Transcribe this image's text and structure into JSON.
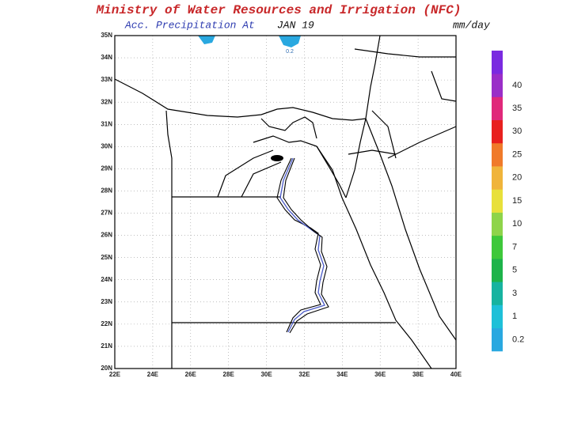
{
  "title": "Ministry of Water Resources and Irrigation (NFC)",
  "subtitle": {
    "label": "Acc. Precipitation  At",
    "date": "JAN 19"
  },
  "unit": "mm/day",
  "map": {
    "lat_labels": [
      "20N",
      "21N",
      "22N",
      "23N",
      "24N",
      "25N",
      "26N",
      "27N",
      "28N",
      "29N",
      "30N",
      "31N",
      "32N",
      "33N",
      "34N",
      "35N"
    ],
    "lon_labels": [
      "22E",
      "24E",
      "26E",
      "28E",
      "30E",
      "32E",
      "34E",
      "36E",
      "38E",
      "40E"
    ],
    "annotation": "0.2"
  },
  "colorbar": {
    "levels": [
      0.2,
      1,
      3,
      5,
      7,
      10,
      15,
      20,
      25,
      30,
      35,
      40
    ],
    "colors": [
      "#29a8e0",
      "#1ec0d8",
      "#17b3a0",
      "#1db34a",
      "#3ec83a",
      "#8ed44a",
      "#e8e03a",
      "#f0b43a",
      "#f07a2a",
      "#e8201e",
      "#e0287a",
      "#9a2ec8",
      "#7a2ae0"
    ]
  }
}
